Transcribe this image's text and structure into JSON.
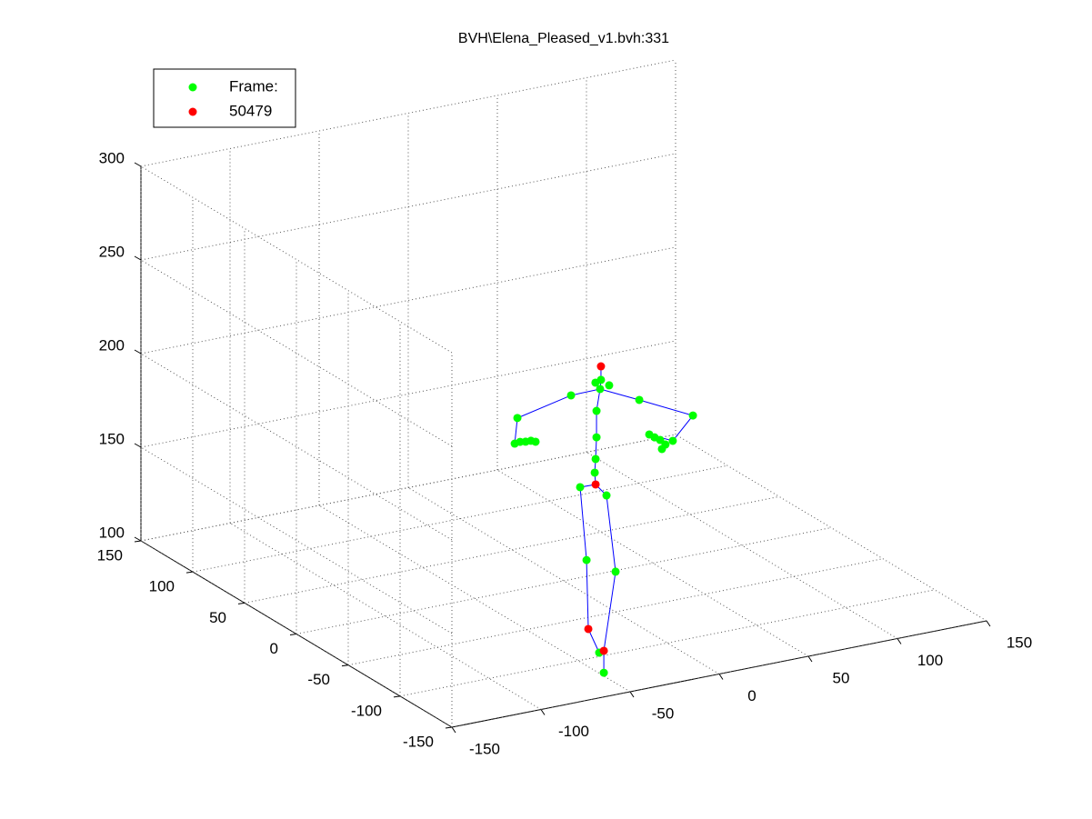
{
  "chart_data": {
    "type": "scatter3d",
    "title": "BVH\\Elena_Pleased_v1.bvh:331",
    "xlim": [
      -150,
      150
    ],
    "ylim": [
      -150,
      150
    ],
    "zlim": [
      100,
      300
    ],
    "xticks": [
      -150,
      -100,
      -50,
      0,
      50,
      100,
      150
    ],
    "yticks": [
      -150,
      -100,
      -50,
      0,
      50,
      100,
      150
    ],
    "zticks": [
      100,
      150,
      200,
      250,
      300
    ],
    "grid": true,
    "legend": "northwest",
    "series": [
      {
        "name": "Frame:",
        "color": "#00ff00",
        "mode": "markers",
        "x": [
          -48.9,
          -52.0,
          -44.3,
          -49.4,
          -51.4,
          -51.4,
          -51.9,
          -52.4,
          -60.6,
          -45.8,
          -57.0,
          -40.7,
          -49.9,
          -47.3,
          -65.7,
          -27.4,
          -95.8,
          2.7,
          -97.3,
          -94.3,
          -91.2,
          -88.2,
          -85.6,
          -21.8,
          -18.8,
          -15.7,
          -12.7,
          -14.7,
          -8.6
        ],
        "y": [
          -120,
          -120,
          -120,
          -120,
          -120,
          -120,
          -120,
          -120,
          -120,
          -120,
          -120,
          -120,
          -120,
          -120,
          -120,
          -120,
          -120,
          -120,
          -120,
          -120,
          -120,
          -120,
          -120,
          -120,
          -120,
          -120,
          -120,
          -120,
          -120
        ],
        "z": [
          256.4,
          255.5,
          252.6,
          251.6,
          240.3,
          226.2,
          214.7,
          207.5,
          201.3,
          194.1,
          161.7,
          152.4,
          110.9,
          99.7,
          251.3,
          241.6,
          244.9,
          227.6,
          231.5,
          231.9,
          231.4,
          231.3,
          230.3,
          222.1,
          220.0,
          218.0,
          215.0,
          213.0,
          216.2
        ]
      },
      {
        "name": "50479",
        "color": "#ff0000",
        "mode": "markers",
        "x": [
          -48.9,
          -51.9,
          -56.0,
          -47.3
        ],
        "y": [
          -120,
          -120,
          -120,
          -120
        ],
        "z": [
          263.6,
          201.1,
          124.7,
          111.4
        ]
      },
      {
        "color": "#0000ff",
        "mode": "lines",
        "x": [
          -51.9,
          -52.4,
          -51.9,
          -51.4,
          -51.4,
          -49.4,
          -48.9,
          -48.9,
          null,
          -49.4,
          -65.7,
          -95.8,
          -97.3,
          -85.6,
          null,
          -49.4,
          -27.4,
          2.7,
          -8.6,
          -21.8,
          null,
          -51.9,
          -60.6,
          -57.0,
          -56.0,
          -49.9,
          null,
          -51.9,
          -45.8,
          -40.7,
          -47.3,
          -47.3
        ],
        "y": [
          -120,
          -120,
          -120,
          -120,
          -120,
          -120,
          -120,
          -120,
          null,
          -120,
          -120,
          -120,
          -120,
          -120,
          null,
          -120,
          -120,
          -120,
          -120,
          -120,
          null,
          -120,
          -120,
          -120,
          -120,
          -120,
          null,
          -120,
          -120,
          -120,
          -120,
          -120
        ],
        "z": [
          201.1,
          207.5,
          214.7,
          226.2,
          240.3,
          251.6,
          256.4,
          263.6,
          null,
          251.6,
          251.3,
          244.9,
          231.5,
          230.3,
          null,
          251.6,
          241.6,
          227.6,
          216.2,
          222.1,
          null,
          201.1,
          201.3,
          161.7,
          124.7,
          110.9,
          null,
          201.1,
          194.1,
          152.4,
          111.4,
          99.7
        ]
      }
    ]
  }
}
